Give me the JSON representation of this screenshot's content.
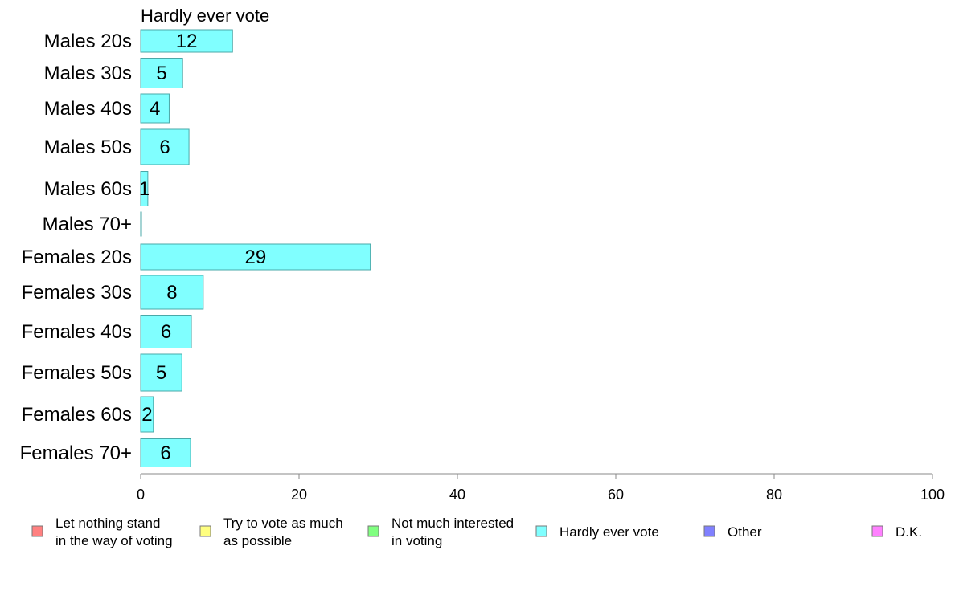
{
  "chart_data": {
    "type": "bar",
    "orientation": "horizontal",
    "title": "Hardly ever vote",
    "categories": [
      "Males 20s",
      "Males 30s",
      "Males 40s",
      "Males 50s",
      "Males 60s",
      "Males 70+",
      "Females 20s",
      "Females 30s",
      "Females 40s",
      "Females 50s",
      "Females 60s",
      "Females 70+"
    ],
    "series": [
      {
        "name": "Hardly ever vote",
        "color": "#80ffff",
        "values": [
          11.6,
          5.3,
          3.6,
          6.1,
          0.9,
          0.1,
          29.0,
          7.9,
          6.4,
          5.2,
          1.6,
          6.3
        ],
        "labels": [
          "12",
          "5",
          "4",
          "6",
          "1",
          "",
          "29",
          "8",
          "6",
          "5",
          "2",
          "6"
        ]
      }
    ],
    "xlim": [
      0,
      100
    ],
    "xticks": [
      "0",
      "20",
      "40",
      "60",
      "80",
      "100"
    ],
    "grid": false,
    "legend_position": "bottom",
    "legend": [
      {
        "line1": "Let nothing stand",
        "line2": "in the way of voting",
        "color": "#ff8080"
      },
      {
        "line1": "Try to vote as much",
        "line2": "as possible",
        "color": "#ffff80"
      },
      {
        "line1": "Not much interested",
        "line2": "in voting",
        "color": "#80ff80"
      },
      {
        "line1": "Hardly ever vote",
        "line2": "",
        "color": "#80ffff"
      },
      {
        "line1": "Other",
        "line2": "",
        "color": "#8080ff"
      },
      {
        "line1": "D.K.",
        "line2": "",
        "color": "#ff80ff"
      }
    ]
  }
}
